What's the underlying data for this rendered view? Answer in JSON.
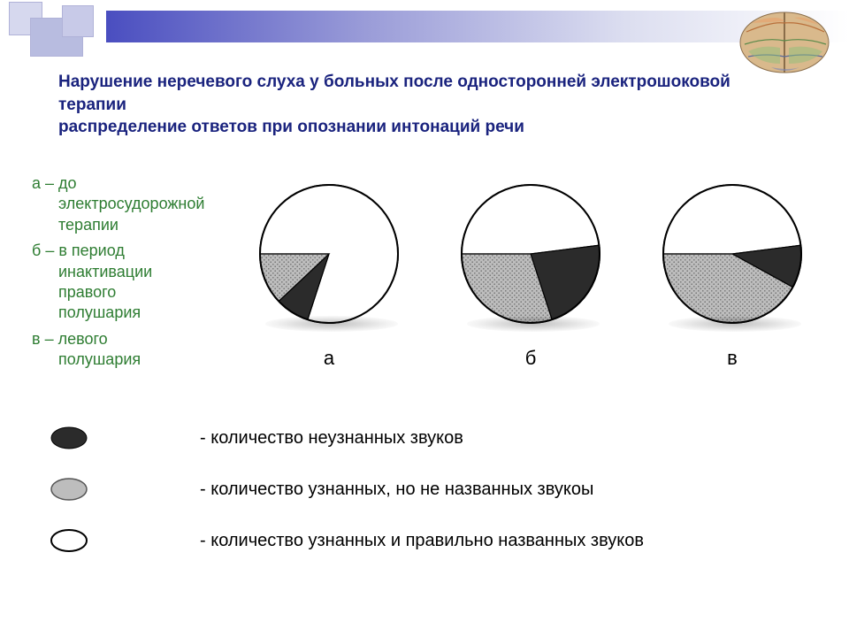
{
  "title_lines": [
    "Нарушение неречевого слуха у больных после односторонней электрошоковой терапии",
    "распределение ответов при опознании интонаций речи"
  ],
  "side_legend": [
    {
      "key": "а",
      "text": "до электросудорожной терапии"
    },
    {
      "key": "б",
      "text": "в период инактивации правого полушария"
    },
    {
      "key": "в",
      "text": "левого полушария"
    }
  ],
  "side_legend_color": "#2e7d32",
  "title_color": "#1a237e",
  "charts": {
    "type": "pie",
    "radius": 78,
    "border_color": "#000000",
    "background_color": "#ffffff",
    "colors": {
      "unrecognized": "#2b2b2b",
      "recognized_not_named": "#bdbdbd",
      "recognized_named": "#ffffff"
    },
    "hatch_pattern": "dots",
    "items": [
      {
        "label": "а",
        "unrecognized": 8,
        "recognized_not_named": 12,
        "recognized_named": 80
      },
      {
        "label": "б",
        "unrecognized": 22,
        "recognized_not_named": 30,
        "recognized_named": 48
      },
      {
        "label": "в",
        "unrecognized": 10,
        "recognized_not_named": 42,
        "recognized_named": 48
      }
    ]
  },
  "bottom_legend": [
    {
      "swatch": "unrecognized",
      "label": "- количество неузнанных звуков"
    },
    {
      "swatch": "recognized_not_named",
      "label": "- количество узнанных, но не названных звукоы"
    },
    {
      "swatch": "recognized_named",
      "label": "- количество узнанных и правильно названных звуков"
    }
  ],
  "swatch_shape": "ellipse",
  "label_fontsize": 20
}
